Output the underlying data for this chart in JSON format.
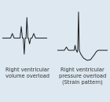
{
  "background_color": "#dde8f0",
  "panel_bg": "#ffffff",
  "waveform_color": "#1a1a1a",
  "label1": "Right ventricular\nvolume overload",
  "label2": "Right ventricular\npressure overload\n(Strain pattern)",
  "label_fontsize": 4.8,
  "label_color": "#333333",
  "lw": 0.7
}
